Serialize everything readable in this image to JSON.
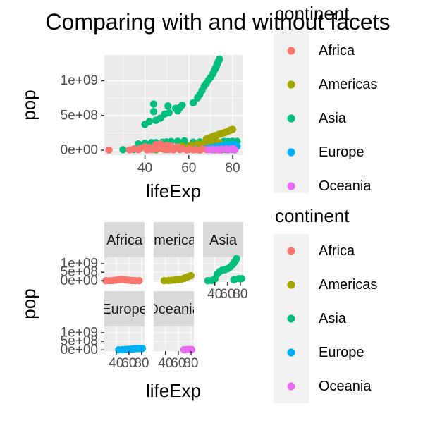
{
  "title": "Comparing with and without facets",
  "colors": {
    "Africa": "#F8766D",
    "Americas": "#A3A500",
    "Asia": "#00BF7D",
    "Europe": "#00B0F6",
    "Oceania": "#E76BF3",
    "panel_bg": "#EBEBEB",
    "grid": "#FFFFFF",
    "strip_bg": "#D9D9D9",
    "legend_bg": "#F2F2F2"
  },
  "chart_data": [
    {
      "type": "scatter",
      "name": "unfaceted",
      "xlabel": "lifeExp",
      "ylabel": "pop",
      "xlim": [
        21.5,
        84.5
      ],
      "ylim": [
        -70000000.0,
        1370000000.0
      ],
      "xticks": [
        40,
        60,
        80
      ],
      "xtick_labels": [
        "40",
        "60",
        "80"
      ],
      "yticks": [
        0,
        500000000,
        1000000000
      ],
      "ytick_labels": [
        "0e+00",
        "5e+08",
        "1e+09"
      ],
      "legend": {
        "title": "continent",
        "entries": [
          "Africa",
          "Americas",
          "Asia",
          "Europe",
          "Oceania"
        ],
        "position": "right"
      },
      "series": [
        {
          "name": "Asia",
          "points": [
            [
              44,
              556000000
            ],
            [
              50.5,
              637000000
            ],
            [
              44,
              665000000
            ],
            [
              54,
              602000000
            ],
            [
              56,
              614000000
            ],
            [
              57,
              650000000
            ],
            [
              62,
              682000000
            ],
            [
              64,
              755000000
            ],
            [
              65,
              800000000
            ],
            [
              66,
              857000000
            ],
            [
              67,
              920000000
            ],
            [
              68,
              960000000
            ],
            [
              69,
              1010000000
            ],
            [
              70,
              1050000000
            ],
            [
              71,
              1100000000
            ],
            [
              71.5,
              1140000000
            ],
            [
              72,
              1170000000
            ],
            [
              72.5,
              1200000000
            ],
            [
              73,
              1240000000
            ],
            [
              73.5,
              1280000000
            ],
            [
              74,
              1310000000
            ],
            [
              40,
              372000000
            ],
            [
              42,
              410000000
            ],
            [
              45,
              430000000
            ],
            [
              47,
              460000000
            ],
            [
              49,
              520000000
            ],
            [
              51,
              540000000
            ],
            [
              55,
              567000000
            ],
            [
              37,
              90000000
            ],
            [
              40,
              100000000
            ],
            [
              43,
              110000000
            ],
            [
              45,
              110000000
            ],
            [
              48,
              115000000
            ],
            [
              50,
              120000000
            ],
            [
              52,
              125000000
            ],
            [
              55,
              130000000
            ],
            [
              58,
              135000000
            ],
            [
              62,
              115000000
            ],
            [
              65,
              120000000
            ],
            [
              68,
              110000000
            ],
            [
              72,
              125000000
            ],
            [
              76,
              127000000
            ],
            [
              78,
              125000000
            ],
            [
              80,
              128000000
            ],
            [
              82,
              127000000
            ],
            [
              60,
              60000000
            ],
            [
              64,
              70000000
            ],
            [
              68,
              80000000
            ],
            [
              70,
              70000000
            ],
            [
              74,
              60000000
            ],
            [
              76,
              50000000
            ],
            [
              78,
              40000000
            ],
            [
              80,
              30000000
            ],
            [
              50,
              40000000
            ],
            [
              55,
              50000000
            ],
            [
              60,
              30000000
            ],
            [
              66,
              20000000
            ],
            [
              70,
              15000000
            ],
            [
              73,
              12000000
            ],
            [
              77,
              8000000
            ],
            [
              81,
              5000000
            ],
            [
              30,
              8000000
            ],
            [
              35,
              10000000
            ],
            [
              45,
              5000000
            ],
            [
              50,
              10000000
            ]
          ]
        },
        {
          "name": "Americas",
          "points": [
            [
              68,
              160000000
            ],
            [
              69,
              170000000
            ],
            [
              70,
              185000000
            ],
            [
              71,
              200000000
            ],
            [
              72,
              210000000
            ],
            [
              73,
              220000000
            ],
            [
              74,
              230000000
            ],
            [
              75,
              240000000
            ],
            [
              76,
              250000000
            ],
            [
              77,
              260000000
            ],
            [
              78,
              275000000
            ],
            [
              79,
              290000000
            ],
            [
              80,
              300000000
            ],
            [
              66,
              60000000
            ],
            [
              68,
              70000000
            ],
            [
              70,
              80000000
            ],
            [
              72,
              100000000
            ],
            [
              74,
              110000000
            ],
            [
              60,
              50000000
            ],
            [
              55,
              40000000
            ],
            [
              50,
              30000000
            ],
            [
              48,
              20000000
            ],
            [
              45,
              10000000
            ],
            [
              62,
              25000000
            ],
            [
              66,
              30000000
            ],
            [
              70,
              35000000
            ],
            [
              74,
              20000000
            ],
            [
              78,
              15000000
            ],
            [
              57,
              60000000
            ],
            [
              61,
              75000000
            ],
            [
              64,
              90000000
            ],
            [
              67,
              105000000
            ],
            [
              70,
              120000000
            ],
            [
              72,
              140000000
            ]
          ]
        },
        {
          "name": "Europe",
          "points": [
            [
              66,
              20000000
            ],
            [
              68,
              30000000
            ],
            [
              70,
              40000000
            ],
            [
              72,
              50000000
            ],
            [
              74,
              60000000
            ],
            [
              76,
              70000000
            ],
            [
              78,
              75000000
            ],
            [
              80,
              80000000
            ],
            [
              81,
              82000000
            ],
            [
              82,
              55000000
            ],
            [
              79,
              60000000
            ],
            [
              77,
              40000000
            ],
            [
              75,
              20000000
            ],
            [
              73,
              10000000
            ],
            [
              71,
              5000000
            ],
            [
              60,
              10000000
            ],
            [
              63,
              15000000
            ],
            [
              69,
              25000000
            ],
            [
              80,
              10000000
            ]
          ]
        },
        {
          "name": "Africa",
          "points": [
            [
              23.6,
              3000000
            ],
            [
              47,
              90000000
            ],
            [
              45,
              80000000
            ],
            [
              50,
              70000000
            ],
            [
              52,
              60000000
            ],
            [
              55,
              50000000
            ],
            [
              40,
              50000000
            ],
            [
              42,
              40000000
            ],
            [
              35,
              20000000
            ],
            [
              38,
              30000000
            ],
            [
              43,
              10000000
            ],
            [
              46,
              25000000
            ],
            [
              48,
              35000000
            ],
            [
              54,
              30000000
            ],
            [
              57,
              20000000
            ],
            [
              60,
              15000000
            ],
            [
              63,
              10000000
            ],
            [
              66,
              20000000
            ],
            [
              68,
              10000000
            ],
            [
              70,
              8000000
            ],
            [
              72,
              5000000
            ],
            [
              75,
              3000000
            ],
            [
              33,
              5000000
            ],
            [
              37,
              8000000
            ],
            [
              41,
              6000000
            ],
            [
              44,
              15000000
            ],
            [
              49,
              12000000
            ],
            [
              51,
              9000000
            ],
            [
              53,
              7000000
            ],
            [
              56,
              11000000
            ],
            [
              59,
              4000000
            ],
            [
              62,
              6000000
            ],
            [
              65,
              2000000
            ]
          ]
        },
        {
          "name": "Oceania",
          "points": [
            [
              69,
              8000000
            ],
            [
              71,
              10000000
            ],
            [
              73,
              12000000
            ],
            [
              75,
              15000000
            ],
            [
              77,
              18000000
            ],
            [
              79,
              19000000
            ],
            [
              80.5,
              20000000
            ],
            [
              81,
              4000000
            ],
            [
              78,
              3500000
            ],
            [
              74,
              3000000
            ]
          ]
        }
      ]
    },
    {
      "type": "scatter",
      "name": "faceted",
      "xlabel": "lifeExp",
      "ylabel": "pop",
      "xlim": [
        21.5,
        84.5
      ],
      "ylim": [
        -70000000.0,
        1370000000.0
      ],
      "xticks": [
        40,
        60,
        80
      ],
      "xtick_labels": [
        "40",
        "60",
        "80"
      ],
      "yticks": [
        0,
        500000000,
        1000000000
      ],
      "ytick_labels": [
        "0e+00",
        "5e+08",
        "1e+09"
      ],
      "facet_labels": [
        "Africa",
        "Americas",
        "Asia",
        "Europe",
        "Oceania"
      ],
      "legend": {
        "title": "continent",
        "entries": [
          "Africa",
          "Americas",
          "Asia",
          "Europe",
          "Oceania"
        ],
        "position": "right"
      },
      "series": [
        {
          "name": "Africa",
          "points": [
            [
              24,
              3000000
            ],
            [
              30,
              5000000
            ],
            [
              35,
              15000000
            ],
            [
              40,
              40000000
            ],
            [
              45,
              60000000
            ],
            [
              48,
              80000000
            ],
            [
              50,
              70000000
            ],
            [
              55,
              50000000
            ],
            [
              60,
              30000000
            ],
            [
              65,
              15000000
            ],
            [
              70,
              8000000
            ],
            [
              76,
              3000000
            ]
          ]
        },
        {
          "name": "Americas",
          "points": [
            [
              38,
              5000000
            ],
            [
              45,
              15000000
            ],
            [
              50,
              30000000
            ],
            [
              55,
              45000000
            ],
            [
              60,
              60000000
            ],
            [
              65,
              90000000
            ],
            [
              68,
              130000000
            ],
            [
              70,
              160000000
            ],
            [
              72,
              190000000
            ],
            [
              74,
              220000000
            ],
            [
              76,
              250000000
            ],
            [
              78,
              280000000
            ],
            [
              80,
              300000000
            ]
          ]
        },
        {
          "name": "Asia",
          "points": [
            [
              29,
              5000000
            ],
            [
              35,
              20000000
            ],
            [
              40,
              100000000
            ],
            [
              44,
              400000000
            ],
            [
              48,
              550000000
            ],
            [
              52,
              620000000
            ],
            [
              56,
              650000000
            ],
            [
              60,
              700000000
            ],
            [
              64,
              800000000
            ],
            [
              68,
              950000000
            ],
            [
              70,
              1050000000
            ],
            [
              72,
              1150000000
            ],
            [
              74,
              1300000000
            ],
            [
              78,
              130000000
            ],
            [
              82,
              127000000
            ],
            [
              70,
              60000000
            ]
          ]
        },
        {
          "name": "Europe",
          "points": [
            [
              44,
              5000000
            ],
            [
              50,
              15000000
            ],
            [
              55,
              25000000
            ],
            [
              60,
              40000000
            ],
            [
              65,
              50000000
            ],
            [
              68,
              60000000
            ],
            [
              70,
              70000000
            ],
            [
              72,
              75000000
            ],
            [
              75,
              78000000
            ],
            [
              78,
              80000000
            ],
            [
              81,
              82000000
            ]
          ]
        },
        {
          "name": "Oceania",
          "points": [
            [
              69,
              8000000
            ],
            [
              71,
              10000000
            ],
            [
              73,
              12000000
            ],
            [
              75,
              15000000
            ],
            [
              77,
              18000000
            ],
            [
              79,
              19000000
            ],
            [
              81,
              20000000
            ]
          ]
        }
      ]
    }
  ]
}
